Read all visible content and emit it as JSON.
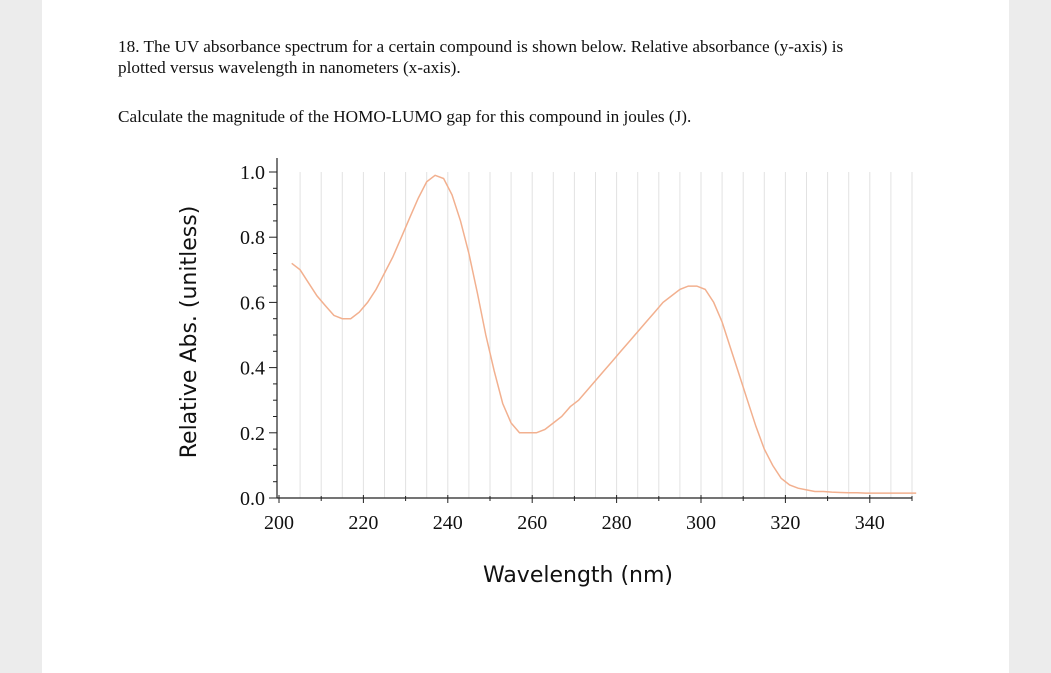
{
  "question": {
    "text": "18. The UV absorbance spectrum for a certain compound is shown below. Relative absorbance (y-axis) is plotted versus wavelength in nanometers (x-axis).",
    "prompt": "Calculate the magnitude of the HOMO-LUMO gap for this compound in joules (J)."
  },
  "colors": {
    "line": "#f2b08f",
    "grid": "#e2e2e2",
    "axis": "#222222",
    "page": "#ffffff",
    "background": "#ececec"
  },
  "chart_data": {
    "type": "line",
    "title": "",
    "xlabel": "Wavelength (nm)",
    "ylabel": "Relative Abs. (unitless)",
    "xlim": [
      200,
      351
    ],
    "ylim": [
      0.0,
      1.0
    ],
    "x_ticks": [
      "200",
      "220",
      "240",
      "260",
      "280",
      "300",
      "320",
      "340"
    ],
    "y_ticks": [
      "0.0",
      "0.2",
      "0.4",
      "0.6",
      "0.8",
      "1.0"
    ],
    "grid": "vertical",
    "series": [
      {
        "x": [
          203,
          205,
          207,
          209,
          211,
          213,
          215,
          217,
          219,
          221,
          223,
          225,
          227,
          229,
          231,
          233,
          235,
          237,
          239,
          241,
          243,
          245,
          247,
          249,
          251,
          253,
          255,
          257,
          259,
          261,
          263,
          265,
          267,
          269,
          271,
          273,
          275,
          277,
          279,
          281,
          283,
          285,
          287,
          289,
          291,
          293,
          295,
          297,
          299,
          301,
          303,
          305,
          307,
          309,
          311,
          313,
          315,
          317,
          319,
          321,
          323,
          325,
          327,
          329,
          331,
          333,
          335,
          337,
          339,
          341,
          343,
          345,
          347,
          349,
          351
        ],
        "y": [
          0.72,
          0.7,
          0.66,
          0.62,
          0.59,
          0.56,
          0.55,
          0.55,
          0.57,
          0.6,
          0.64,
          0.69,
          0.74,
          0.8,
          0.86,
          0.92,
          0.97,
          0.99,
          0.98,
          0.93,
          0.85,
          0.75,
          0.63,
          0.5,
          0.39,
          0.29,
          0.23,
          0.2,
          0.2,
          0.2,
          0.21,
          0.23,
          0.25,
          0.28,
          0.3,
          0.33,
          0.36,
          0.39,
          0.42,
          0.45,
          0.48,
          0.51,
          0.54,
          0.57,
          0.6,
          0.62,
          0.64,
          0.65,
          0.65,
          0.64,
          0.6,
          0.54,
          0.46,
          0.38,
          0.3,
          0.22,
          0.15,
          0.1,
          0.06,
          0.04,
          0.03,
          0.025,
          0.02,
          0.02,
          0.018,
          0.017,
          0.016,
          0.016,
          0.015,
          0.015,
          0.015,
          0.015,
          0.015,
          0.015,
          0.015
        ]
      }
    ]
  }
}
